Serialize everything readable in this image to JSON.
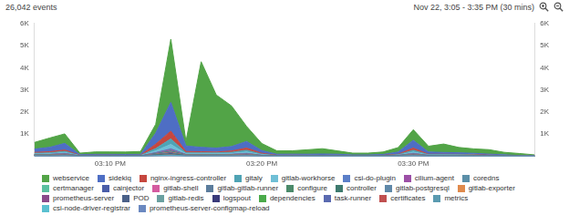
{
  "chart_data": {
    "type": "area",
    "title": "26,042 events",
    "subtitle": "Nov 22, 3:05 - 3:35 PM (30 mins)",
    "stacked": true,
    "grid": false,
    "legend": "bottom",
    "categories": [
      null,
      null,
      null,
      null,
      null,
      "03:10 PM",
      null,
      null,
      null,
      null,
      null,
      null,
      null,
      null,
      null,
      "03:20 PM",
      null,
      null,
      null,
      null,
      null,
      null,
      null,
      null,
      null,
      "03:30 PM",
      null,
      null,
      null,
      null,
      null,
      null,
      null,
      null
    ],
    "ylim": [
      0,
      6000
    ],
    "yticks": [
      {
        "value": 1000,
        "label": "1K"
      },
      {
        "value": 2000,
        "label": "2K"
      },
      {
        "value": 3000,
        "label": "3K"
      },
      {
        "value": 4000,
        "label": "4K"
      },
      {
        "value": 5000,
        "label": "5K"
      },
      {
        "value": 6000,
        "label": "6K"
      }
    ],
    "y2lim": [
      0,
      6000
    ],
    "y2ticks": [
      {
        "value": 1000,
        "label": "1K"
      },
      {
        "value": 2000,
        "label": "2K"
      },
      {
        "value": 3000,
        "label": "3K"
      },
      {
        "value": 4000,
        "label": "4K"
      },
      {
        "value": 5000,
        "label": "5K"
      },
      {
        "value": 6000,
        "label": "6K"
      }
    ],
    "series": [
      {
        "name": "webservice",
        "color": "#52a447",
        "values": [
          300,
          420,
          430,
          70,
          110,
          110,
          110,
          130,
          400,
          2860,
          210,
          3870,
          2400,
          1840,
          680,
          320,
          150,
          150,
          200,
          240,
          150,
          80,
          80,
          110,
          200,
          480,
          260,
          380,
          240,
          200,
          200,
          110,
          90,
          45
        ]
      },
      {
        "name": "sidekiq",
        "color": "#4e6ec4",
        "values": [
          150,
          200,
          300,
          30,
          40,
          40,
          40,
          40,
          500,
          1300,
          250,
          200,
          180,
          200,
          300,
          120,
          50,
          50,
          50,
          60,
          50,
          30,
          30,
          40,
          100,
          350,
          100,
          80,
          70,
          60,
          50,
          30,
          20,
          10
        ]
      },
      {
        "name": "nginx-ingress-controller",
        "color": "#c6473f",
        "values": [
          40,
          50,
          60,
          10,
          10,
          10,
          10,
          10,
          200,
          350,
          60,
          50,
          40,
          60,
          100,
          40,
          10,
          10,
          10,
          10,
          10,
          5,
          5,
          10,
          20,
          100,
          20,
          20,
          20,
          15,
          15,
          10,
          5,
          5
        ]
      },
      {
        "name": "gitaly",
        "color": "#4fa3b4",
        "values": [
          30,
          40,
          50,
          10,
          10,
          10,
          10,
          10,
          100,
          250,
          40,
          40,
          40,
          50,
          80,
          30,
          10,
          10,
          10,
          10,
          10,
          5,
          5,
          10,
          20,
          80,
          20,
          20,
          20,
          15,
          10,
          5,
          5,
          0
        ]
      },
      {
        "name": "gitlab-workhorse",
        "color": "#6fbfd6",
        "values": [
          20,
          30,
          40,
          5,
          5,
          5,
          5,
          5,
          80,
          200,
          30,
          30,
          30,
          40,
          60,
          20,
          5,
          5,
          5,
          5,
          5,
          5,
          5,
          5,
          10,
          60,
          10,
          10,
          10,
          10,
          5,
          5,
          0,
          0
        ]
      },
      {
        "name": "csi-do-plugin",
        "color": "#5b7fc8",
        "values": [
          5,
          5,
          8,
          1,
          1,
          1,
          1,
          1,
          10,
          20,
          5,
          5,
          5,
          5,
          8,
          3,
          1,
          1,
          1,
          1,
          1,
          1,
          1,
          1,
          2,
          8,
          2,
          2,
          2,
          2,
          1,
          1,
          0,
          0
        ]
      },
      {
        "name": "cilium-agent",
        "color": "#9c4fa6",
        "values": [
          6,
          4,
          9,
          1,
          2,
          1,
          1,
          2,
          12,
          24,
          6,
          4,
          5,
          6,
          9,
          2,
          1,
          1,
          1,
          1,
          1,
          1,
          1,
          1,
          3,
          9,
          2,
          3,
          2,
          2,
          1,
          1,
          0,
          0
        ]
      },
      {
        "name": "coredns",
        "color": "#5b8fa8",
        "values": [
          4,
          6,
          7,
          1,
          1,
          2,
          1,
          1,
          8,
          18,
          4,
          6,
          4,
          5,
          7,
          3,
          1,
          2,
          1,
          1,
          1,
          1,
          1,
          1,
          2,
          7,
          3,
          2,
          2,
          1,
          1,
          1,
          0,
          0
        ]
      },
      {
        "name": "certmanager",
        "color": "#5bc0a0",
        "values": [
          2,
          2,
          3,
          0,
          0,
          0,
          0,
          0,
          4,
          8,
          2,
          2,
          2,
          2,
          3,
          1,
          0,
          0,
          0,
          0,
          0,
          0,
          0,
          0,
          1,
          3,
          1,
          1,
          1,
          1,
          0,
          0,
          0,
          0
        ]
      },
      {
        "name": "cainjector",
        "color": "#4a5da8",
        "values": [
          2,
          2,
          3,
          0,
          0,
          0,
          0,
          0,
          4,
          8,
          2,
          2,
          2,
          2,
          3,
          1,
          0,
          0,
          0,
          0,
          0,
          0,
          0,
          0,
          1,
          3,
          1,
          1,
          1,
          1,
          0,
          0,
          0,
          0
        ]
      },
      {
        "name": "gitlab-shell",
        "color": "#d45ba0",
        "values": [
          4,
          6,
          7,
          1,
          1,
          2,
          1,
          1,
          8,
          18,
          4,
          6,
          4,
          5,
          7,
          3,
          1,
          2,
          1,
          1,
          1,
          1,
          1,
          1,
          2,
          7,
          3,
          2,
          2,
          1,
          1,
          1,
          0,
          0
        ]
      },
      {
        "name": "gitlab-gitlab-runner",
        "color": "#5b7c9c",
        "values": [
          5,
          5,
          8,
          1,
          1,
          1,
          1,
          1,
          10,
          20,
          5,
          5,
          5,
          5,
          8,
          3,
          1,
          1,
          1,
          1,
          1,
          1,
          1,
          1,
          2,
          8,
          2,
          2,
          2,
          2,
          1,
          1,
          0,
          0
        ]
      },
      {
        "name": "configure",
        "color": "#4b8a6a",
        "values": [
          2,
          2,
          3,
          0,
          0,
          0,
          0,
          0,
          4,
          8,
          2,
          2,
          2,
          2,
          3,
          1,
          0,
          0,
          0,
          0,
          0,
          0,
          0,
          0,
          1,
          3,
          1,
          1,
          1,
          1,
          0,
          0,
          0,
          0
        ]
      },
      {
        "name": "controller",
        "color": "#3e7a6e",
        "values": [
          2,
          2,
          3,
          0,
          0,
          0,
          0,
          0,
          4,
          8,
          2,
          2,
          2,
          2,
          3,
          1,
          0,
          0,
          0,
          0,
          0,
          0,
          0,
          0,
          1,
          3,
          1,
          1,
          1,
          1,
          0,
          0,
          0,
          0
        ]
      },
      {
        "name": "gitlab-postgresql",
        "color": "#5f88a8",
        "values": [
          6,
          4,
          9,
          1,
          2,
          1,
          1,
          2,
          12,
          24,
          6,
          4,
          5,
          6,
          9,
          2,
          1,
          1,
          1,
          1,
          1,
          1,
          1,
          1,
          3,
          9,
          2,
          3,
          2,
          2,
          1,
          1,
          0,
          0
        ]
      },
      {
        "name": "gitlab-exporter",
        "color": "#e08a4c",
        "values": [
          4,
          6,
          7,
          1,
          1,
          2,
          1,
          1,
          8,
          18,
          4,
          6,
          4,
          5,
          7,
          3,
          1,
          2,
          1,
          1,
          1,
          1,
          1,
          1,
          2,
          7,
          3,
          2,
          2,
          1,
          1,
          1,
          0,
          0
        ]
      },
      {
        "name": "prometheus-server",
        "color": "#8a4a8a",
        "values": [
          5,
          5,
          8,
          1,
          1,
          1,
          1,
          1,
          10,
          20,
          5,
          5,
          5,
          5,
          8,
          3,
          1,
          1,
          1,
          1,
          1,
          1,
          1,
          1,
          2,
          8,
          2,
          2,
          2,
          2,
          1,
          1,
          0,
          0
        ]
      },
      {
        "name": "POD",
        "color": "#4a6088",
        "values": [
          2,
          2,
          3,
          0,
          0,
          0,
          0,
          0,
          4,
          8,
          2,
          2,
          2,
          2,
          3,
          1,
          0,
          0,
          0,
          0,
          0,
          0,
          0,
          0,
          1,
          3,
          1,
          1,
          1,
          1,
          0,
          0,
          0,
          0
        ]
      },
      {
        "name": "gitlab-redis",
        "color": "#6aa0a0",
        "values": [
          6,
          4,
          9,
          1,
          2,
          1,
          1,
          2,
          12,
          24,
          6,
          4,
          5,
          6,
          9,
          2,
          1,
          1,
          1,
          1,
          1,
          1,
          1,
          1,
          3,
          9,
          2,
          3,
          2,
          2,
          1,
          1,
          0,
          0
        ]
      },
      {
        "name": "logspout",
        "color": "#3a3a7a",
        "values": [
          5,
          5,
          8,
          1,
          1,
          1,
          1,
          1,
          10,
          20,
          5,
          5,
          5,
          5,
          8,
          3,
          1,
          1,
          1,
          1,
          1,
          1,
          1,
          1,
          2,
          8,
          2,
          2,
          2,
          2,
          1,
          1,
          0,
          0
        ]
      },
      {
        "name": "dependencies",
        "color": "#4aaa4a",
        "values": [
          4,
          6,
          7,
          1,
          1,
          2,
          1,
          1,
          8,
          18,
          4,
          6,
          4,
          5,
          7,
          3,
          1,
          2,
          1,
          1,
          1,
          1,
          1,
          1,
          2,
          7,
          3,
          2,
          2,
          1,
          1,
          1,
          0,
          0
        ]
      },
      {
        "name": "task-runner",
        "color": "#5a6ab0",
        "values": [
          2,
          2,
          3,
          0,
          0,
          0,
          0,
          0,
          4,
          8,
          2,
          2,
          2,
          2,
          3,
          1,
          0,
          0,
          0,
          0,
          0,
          0,
          0,
          0,
          1,
          3,
          1,
          1,
          1,
          1,
          0,
          0,
          0,
          0
        ]
      },
      {
        "name": "certificates",
        "color": "#c05050",
        "values": [
          2,
          2,
          3,
          0,
          0,
          0,
          0,
          0,
          4,
          8,
          2,
          2,
          2,
          2,
          3,
          1,
          0,
          0,
          0,
          0,
          0,
          0,
          0,
          0,
          1,
          3,
          1,
          1,
          1,
          1,
          0,
          0,
          0,
          0
        ]
      },
      {
        "name": "metrics",
        "color": "#5a9ab0",
        "values": [
          5,
          5,
          8,
          1,
          1,
          1,
          1,
          1,
          10,
          20,
          5,
          5,
          5,
          5,
          8,
          3,
          1,
          1,
          1,
          1,
          1,
          1,
          1,
          1,
          2,
          8,
          2,
          2,
          2,
          2,
          1,
          1,
          0,
          0
        ]
      },
      {
        "name": "csi-node-driver-registrar",
        "color": "#5ac0d0",
        "values": [
          6,
          4,
          9,
          1,
          2,
          1,
          1,
          2,
          12,
          24,
          6,
          4,
          5,
          6,
          9,
          2,
          1,
          1,
          1,
          1,
          1,
          1,
          1,
          1,
          3,
          9,
          2,
          3,
          2,
          2,
          1,
          1,
          0,
          0
        ]
      },
      {
        "name": "prometheus-server-configmap-reload",
        "color": "#6a88c0",
        "values": [
          2,
          2,
          3,
          0,
          0,
          0,
          0,
          0,
          4,
          8,
          2,
          2,
          2,
          2,
          3,
          1,
          0,
          0,
          0,
          0,
          0,
          0,
          0,
          0,
          1,
          3,
          1,
          1,
          1,
          1,
          0,
          0,
          0,
          0
        ]
      }
    ]
  }
}
